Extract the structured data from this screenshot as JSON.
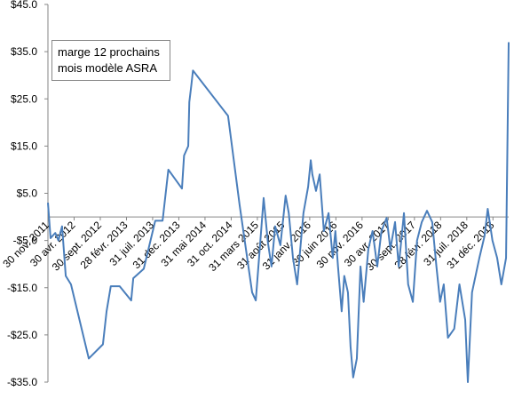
{
  "chart_data": {
    "type": "line",
    "series": [
      {
        "name": "marge 12 prochains mois modèle ASRA",
        "color": "#4a7ebb",
        "x": [
          0,
          0.5,
          1.4,
          2,
          2.7,
          3.4,
          4.4,
          7.8,
          10.5,
          11.2,
          12,
          13.7,
          15.9,
          16.3,
          18.3,
          20.5,
          21.9,
          23,
          25.6,
          26,
          26.8,
          27,
          27.4,
          27.7,
          34.4,
          36.6,
          39,
          39.7,
          41.2,
          42,
          42.7,
          43.4,
          44.4,
          45.4,
          46,
          46.8,
          47.6,
          48.8,
          49.7,
          50.2,
          50.5,
          51.2,
          51.9,
          52.7,
          53.6,
          54.4,
          54.9,
          55.4,
          56.1,
          56.6,
          57.3,
          57.8,
          58.3,
          59,
          59.7,
          60.3,
          61.2,
          62,
          62.9,
          63.7,
          64.7,
          65.4,
          66.3,
          67,
          68,
          68.8,
          69.7,
          70.5,
          71.4,
          72.4,
          73.4,
          74.2,
          74.9,
          75.6,
          76.4,
          77.6,
          78.6,
          79.7,
          80.2,
          81,
          82.4,
          83.4,
          84,
          84.9,
          85.8,
          86.6,
          87.5,
          88
        ],
        "values": [
          3,
          -4.5,
          -3.4,
          -5,
          -2,
          -12.5,
          -14.3,
          -30,
          -27,
          -20,
          -14.7,
          -14.7,
          -17.7,
          -13,
          -11,
          -0.8,
          -0.8,
          10,
          6,
          13,
          15,
          24.3,
          28,
          31,
          21.4,
          2.6,
          -16,
          -17.7,
          4,
          -5.3,
          -10.5,
          -2,
          -6,
          4.5,
          0.8,
          -8.7,
          -14.3,
          0.8,
          6.4,
          12,
          9,
          5.5,
          9,
          -3,
          0.8,
          -8.7,
          -3,
          -10.5,
          -20,
          -12.5,
          -16,
          -27.5,
          -34,
          -30,
          -10.5,
          -18,
          -6.8,
          -3,
          -10.5,
          -3,
          -0.2,
          -6.8,
          -1.1,
          -10.5,
          0.8,
          -14.3,
          -18,
          -5,
          -1.1,
          1.3,
          -1.1,
          -10.5,
          -18,
          -14.3,
          -25.6,
          -23.7,
          -14.3,
          -21.8,
          -35,
          -16,
          -8.7,
          -4,
          1.7,
          -5,
          -8.7,
          -14.3,
          -8.7,
          37
        ]
      }
    ],
    "xlim": [
      0,
      88
    ],
    "xticks": [
      {
        "value": 0,
        "label": "30 nov. 2011"
      },
      {
        "value": 5,
        "label": "30 avr. 2012"
      },
      {
        "value": 10,
        "label": "30 sept. 2012"
      },
      {
        "value": 15,
        "label": "28 févr. 2013"
      },
      {
        "value": 20,
        "label": "31 juil. 2013"
      },
      {
        "value": 25,
        "label": "31 déc. 2013"
      },
      {
        "value": 30,
        "label": "31 mai 2014"
      },
      {
        "value": 35,
        "label": "31 oct. 2014"
      },
      {
        "value": 40,
        "label": "31 mars 2015"
      },
      {
        "value": 45,
        "label": "31 août 2015"
      },
      {
        "value": 50,
        "label": "31 janv. 2016"
      },
      {
        "value": 55,
        "label": "30 juin 2016"
      },
      {
        "value": 60,
        "label": "30 nov. 2016"
      },
      {
        "value": 65,
        "label": "30 avr. 2017"
      },
      {
        "value": 70,
        "label": "30 sept. 2017"
      },
      {
        "value": 75,
        "label": "28 févr. 2018"
      },
      {
        "value": 80,
        "label": "31 juil. 2018"
      },
      {
        "value": 85,
        "label": "31 déc. 2018"
      }
    ],
    "ylim": [
      -35,
      45
    ],
    "yticks": [
      {
        "value": 45,
        "label": "$45.0"
      },
      {
        "value": 35,
        "label": "$35.0"
      },
      {
        "value": 25,
        "label": "$25.0"
      },
      {
        "value": 15,
        "label": "$15.0"
      },
      {
        "value": 5,
        "label": "$5.0"
      },
      {
        "value": -5,
        "label": "-$5.0"
      },
      {
        "value": -15,
        "label": "-$15.0"
      },
      {
        "value": -25,
        "label": "-$25.0"
      },
      {
        "value": -35,
        "label": "-$35.0"
      }
    ],
    "grid": false
  }
}
